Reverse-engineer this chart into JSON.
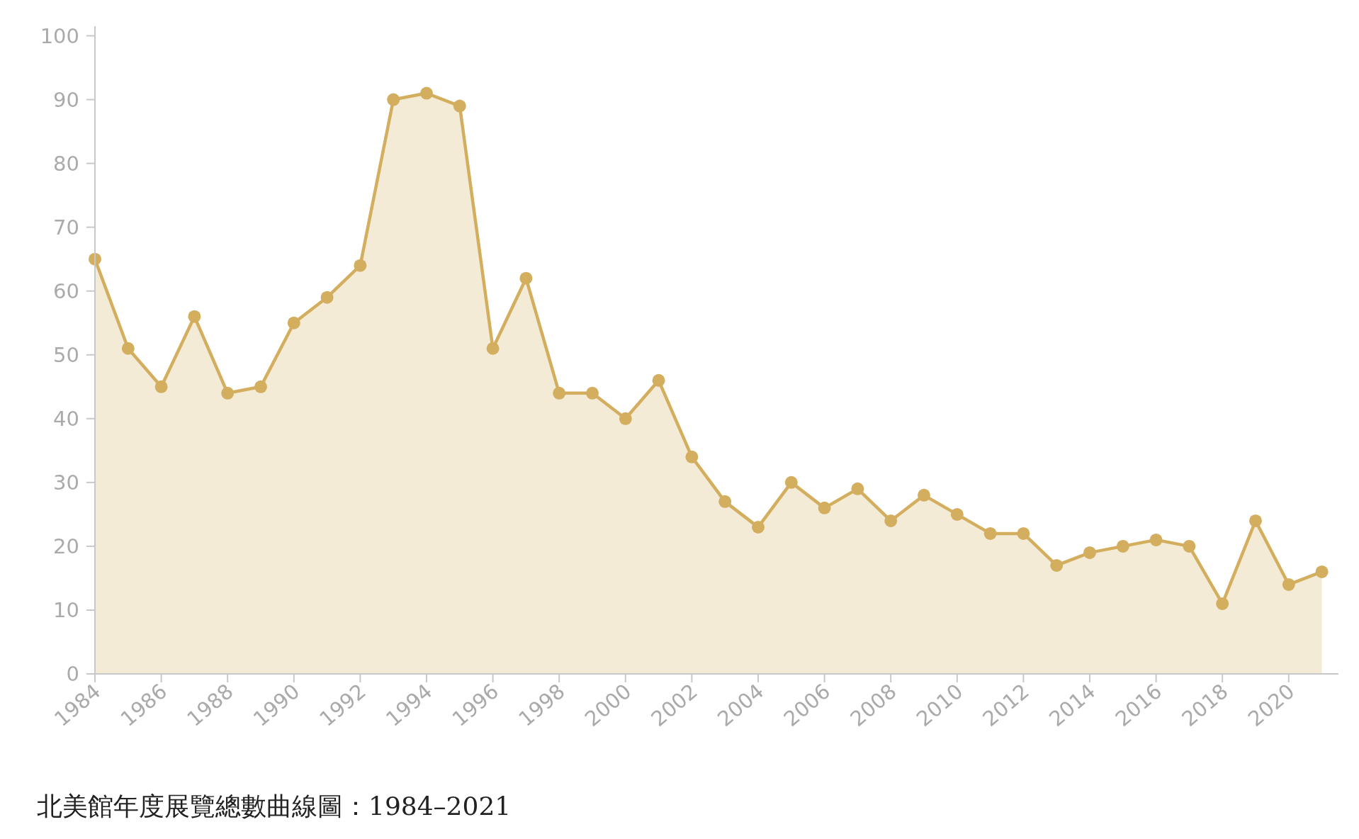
{
  "chart_data": {
    "type": "area",
    "x": [
      1984,
      1985,
      1986,
      1987,
      1988,
      1989,
      1990,
      1991,
      1992,
      1993,
      1994,
      1995,
      1996,
      1997,
      1998,
      1999,
      2000,
      2001,
      2002,
      2003,
      2004,
      2005,
      2006,
      2007,
      2008,
      2009,
      2010,
      2011,
      2012,
      2013,
      2014,
      2015,
      2016,
      2017,
      2018,
      2019,
      2020,
      2021
    ],
    "series": [
      {
        "color": "#d4ae5f",
        "values": [
          65,
          51,
          45,
          56,
          44,
          45,
          55,
          59,
          64,
          90,
          91,
          89,
          51,
          62,
          44,
          44,
          40,
          46,
          34,
          27,
          23,
          30,
          26,
          29,
          24,
          28,
          25,
          22,
          22,
          17,
          19,
          20,
          21,
          20,
          11,
          24,
          14,
          16
        ]
      }
    ],
    "marker": "circle",
    "xlim": [
      1984,
      2021.5
    ],
    "ylim": [
      0,
      101.5
    ],
    "xticks": [
      1984,
      1986,
      1988,
      1990,
      1992,
      1994,
      1996,
      1998,
      2000,
      2002,
      2004,
      2006,
      2008,
      2010,
      2012,
      2014,
      2016,
      2018,
      2020
    ],
    "yticks": [
      0,
      10,
      20,
      30,
      40,
      50,
      60,
      70,
      80,
      90,
      100
    ],
    "grid": false,
    "annotations": [
      "北美館年度展覽總數曲線圖：1984–2021"
    ]
  }
}
